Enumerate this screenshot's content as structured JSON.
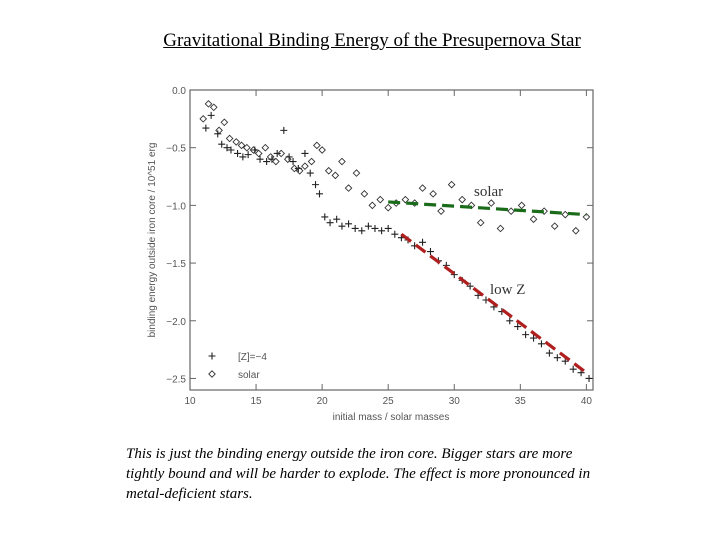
{
  "title": "Gravitational Binding Energy of the Presupernova Star",
  "caption": "This is just the binding energy outside the iron core. Bigger stars are more tightly bound and will be harder to explode. The effect is more pronounced in metal-deficient stars.",
  "chart_data": {
    "type": "scatter",
    "xlabel": "initial mass / solar masses",
    "ylabel": "binding energy outside iron core / 10^51 erg",
    "xlim": [
      10,
      40.5
    ],
    "ylim": [
      -2.6,
      0.0
    ],
    "xticks": [
      10,
      15,
      20,
      25,
      30,
      35,
      40
    ],
    "xtick_labels": [
      "10",
      "15",
      "20",
      "25",
      "30",
      "35",
      "40"
    ],
    "yticks": [
      0.0,
      -0.5,
      -1.0,
      -1.5,
      -2.0,
      -2.5
    ],
    "ytick_labels": [
      "0.0",
      "−0.5",
      "−1.0",
      "−1.5",
      "−2.0",
      "−2.5"
    ],
    "legend": {
      "position": "bottom-left",
      "entries": [
        {
          "marker": "+",
          "label": "[Z]=−4"
        },
        {
          "marker": "◇",
          "label": "solar"
        }
      ]
    },
    "series": [
      {
        "name": "[Z]=-4",
        "marker": "plus",
        "x": [
          11.2,
          11.6,
          12.1,
          12.4,
          12.8,
          13.1,
          13.6,
          14.0,
          14.4,
          14.9,
          15.3,
          15.8,
          16.2,
          16.6,
          17.1,
          17.5,
          17.8,
          18.2,
          18.7,
          19.1,
          19.5,
          19.8,
          20.2,
          20.6,
          21.1,
          21.5,
          22.0,
          22.5,
          23.0,
          23.5,
          24.0,
          24.5,
          25.0,
          25.5,
          26.0,
          26.5,
          27.0,
          27.6,
          28.2,
          28.8,
          29.4,
          30.0,
          30.6,
          31.2,
          31.8,
          32.4,
          33.0,
          33.6,
          34.2,
          34.8,
          35.4,
          36.0,
          36.6,
          37.2,
          37.8,
          38.4,
          39.0,
          39.6,
          40.2
        ],
        "y": [
          -0.33,
          -0.22,
          -0.38,
          -0.47,
          -0.5,
          -0.52,
          -0.55,
          -0.58,
          -0.56,
          -0.52,
          -0.6,
          -0.62,
          -0.6,
          -0.55,
          -0.35,
          -0.58,
          -0.62,
          -0.68,
          -0.55,
          -0.72,
          -0.82,
          -0.9,
          -1.1,
          -1.15,
          -1.12,
          -1.18,
          -1.16,
          -1.2,
          -1.22,
          -1.18,
          -1.2,
          -1.22,
          -1.2,
          -1.25,
          -1.28,
          -1.3,
          -1.35,
          -1.32,
          -1.4,
          -1.48,
          -1.52,
          -1.6,
          -1.65,
          -1.7,
          -1.78,
          -1.82,
          -1.88,
          -1.92,
          -2.0,
          -2.05,
          -2.12,
          -2.15,
          -2.2,
          -2.28,
          -2.32,
          -2.35,
          -2.42,
          -2.45,
          -2.5
        ]
      },
      {
        "name": "solar",
        "marker": "diamond",
        "x": [
          11.0,
          11.4,
          11.8,
          12.2,
          12.6,
          13.0,
          13.5,
          13.9,
          14.3,
          14.8,
          15.2,
          15.7,
          16.1,
          16.5,
          16.9,
          17.4,
          17.9,
          18.3,
          18.7,
          19.2,
          19.6,
          20.0,
          20.5,
          21.0,
          21.5,
          22.0,
          22.6,
          23.2,
          23.8,
          24.4,
          25.0,
          25.6,
          26.3,
          27.0,
          27.6,
          28.4,
          29.0,
          29.8,
          30.6,
          31.3,
          32.0,
          32.8,
          33.5,
          34.3,
          35.1,
          36.0,
          36.8,
          37.6,
          38.4,
          39.2,
          40.0
        ],
        "y": [
          -0.25,
          -0.12,
          -0.15,
          -0.35,
          -0.28,
          -0.42,
          -0.45,
          -0.48,
          -0.5,
          -0.52,
          -0.55,
          -0.5,
          -0.58,
          -0.62,
          -0.55,
          -0.6,
          -0.68,
          -0.7,
          -0.66,
          -0.62,
          -0.48,
          -0.52,
          -0.7,
          -0.74,
          -0.62,
          -0.85,
          -0.72,
          -0.9,
          -1.0,
          -0.95,
          -1.02,
          -0.98,
          -0.95,
          -0.98,
          -0.85,
          -0.9,
          -1.05,
          -0.82,
          -0.95,
          -1.0,
          -1.15,
          -0.98,
          -1.2,
          -1.05,
          -1.0,
          -1.12,
          -1.05,
          -1.18,
          -1.08,
          -1.22,
          -1.1
        ]
      }
    ],
    "trend_lines": [
      {
        "name": "solar",
        "label": "solar",
        "color": "#1a6b1a",
        "x": [
          25.0,
          40.0
        ],
        "y": [
          -0.97,
          -1.08
        ]
      },
      {
        "name": "low Z",
        "label": "low Z",
        "color": "#b01e1e",
        "x": [
          26.0,
          40.0
        ],
        "y": [
          -1.25,
          -2.45
        ]
      }
    ]
  }
}
